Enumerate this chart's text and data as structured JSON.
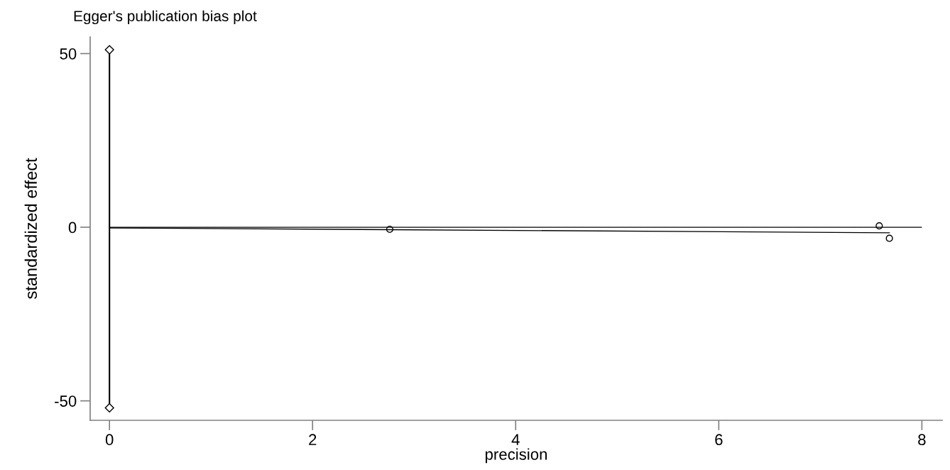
{
  "chart_data": {
    "type": "scatter",
    "title": "Egger's publication bias plot",
    "xlabel": "precision",
    "ylabel": "standardized effect",
    "xlim": [
      -0.19,
      8.2
    ],
    "xticks": [
      0,
      2,
      4,
      6,
      8
    ],
    "ylim": [
      -55.6,
      54.8
    ],
    "yticks": [
      -50,
      0,
      50
    ],
    "grid": false,
    "legend": false,
    "ref_lines": [
      {
        "axis": "y",
        "value": 0,
        "color": "#000000"
      }
    ],
    "series": [
      {
        "marker": "circle",
        "color": "#000000",
        "x": [
          2.76,
          7.58,
          7.68
        ],
        "values": [
          -0.6,
          0.4,
          -3.2
        ]
      },
      {
        "type": "line",
        "marker": "none",
        "color": "#000000",
        "x": [
          0,
          7.68
        ],
        "values": [
          -0.2,
          -1.6
        ]
      },
      {
        "type": "line",
        "marker": "diamond",
        "color": "#000000",
        "x": [
          0,
          0
        ],
        "values": [
          -52.0,
          51.1
        ]
      }
    ]
  }
}
